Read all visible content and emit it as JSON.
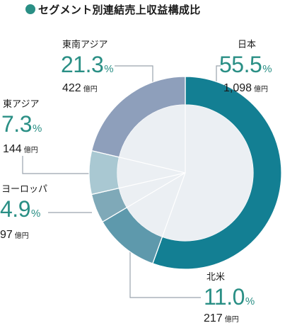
{
  "title": "セグメント別連結売上収益構成比",
  "colors": {
    "accent": "#2a8f85",
    "japan": "#137f93",
    "north_america": "#5e99ac",
    "europe": "#7fa9b8",
    "east_asia": "#a9c8d2",
    "southeast_asia": "#8e9fbb",
    "inner_fill": "#ebeff3"
  },
  "labels": {
    "japan": {
      "name": "日本",
      "percent": "55.5",
      "unit": "%",
      "amount": "1,098",
      "amount_unit": "億円"
    },
    "north_america": {
      "name": "北米",
      "percent": "11.0",
      "unit": "%",
      "amount": "217",
      "amount_unit": "億円"
    },
    "europe": {
      "name": "ヨーロッパ",
      "percent": "4.9",
      "unit": "%",
      "amount": "97",
      "amount_unit": "億円"
    },
    "east_asia": {
      "name": "東アジア",
      "percent": "7.3",
      "unit": "%",
      "amount": "144",
      "amount_unit": "億円"
    },
    "southeast_asia": {
      "name": "東南アジア",
      "percent": "21.3",
      "unit": "%",
      "amount": "422",
      "amount_unit": "億円"
    }
  },
  "chart_data": {
    "type": "pie",
    "title": "セグメント別連結売上収益構成比",
    "unit": "億円",
    "start": "12 o'clock, clockwise",
    "slices": [
      {
        "key": "japan",
        "label": "日本",
        "percent": 55.5,
        "value": 1098,
        "color": "#137f93"
      },
      {
        "key": "north_america",
        "label": "北米",
        "percent": 11.0,
        "value": 217,
        "color": "#5e99ac"
      },
      {
        "key": "europe",
        "label": "ヨーロッパ",
        "percent": 4.9,
        "value": 97,
        "color": "#7fa9b8"
      },
      {
        "key": "east_asia",
        "label": "東アジア",
        "percent": 7.3,
        "value": 144,
        "color": "#a9c8d2"
      },
      {
        "key": "southeast_asia",
        "label": "東南アジア",
        "percent": 21.3,
        "value": 422,
        "color": "#8e9fbb"
      }
    ]
  }
}
